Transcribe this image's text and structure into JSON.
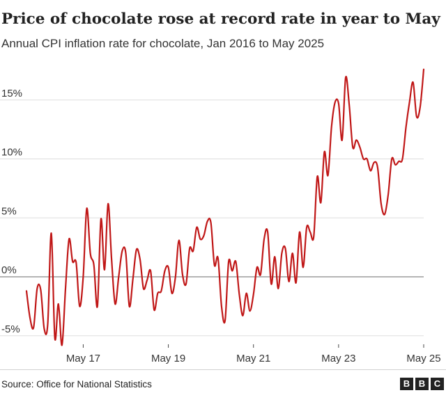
{
  "header": {
    "title": "Price of chocolate rose at record rate in year to May",
    "subtitle": "Annual CPI inflation rate for chocolate, Jan 2016 to May 2025"
  },
  "footer": {
    "source": "Source: Office for National Statistics",
    "logo_letters": [
      "B",
      "B",
      "C"
    ]
  },
  "colors": {
    "line": "#c01717",
    "grid": "#dddddd",
    "zero": "#888888",
    "text": "#222222"
  },
  "chart_data": {
    "type": "line",
    "title": "Price of chocolate rose at record rate in year to May",
    "subtitle": "Annual CPI inflation rate for chocolate, Jan 2016 to May 2025",
    "xlabel": "",
    "ylabel": "",
    "ylim": [
      -5.5,
      18
    ],
    "grid": true,
    "yticks": [
      {
        "value": -5,
        "label": "-5%"
      },
      {
        "value": 0,
        "label": "0%"
      },
      {
        "value": 5,
        "label": "5%"
      },
      {
        "value": 10,
        "label": "10%"
      },
      {
        "value": 15,
        "label": "15%"
      }
    ],
    "xticks": [
      {
        "index": 16,
        "label": "May 17"
      },
      {
        "index": 40,
        "label": "May 19"
      },
      {
        "index": 64,
        "label": "May 21"
      },
      {
        "index": 88,
        "label": "May 23"
      },
      {
        "index": 112,
        "label": "May 25"
      }
    ],
    "x_start": "Jan 2016",
    "x_end": "May 2025",
    "series": [
      {
        "name": "Chocolate CPI annual rate",
        "values": [
          -1.2,
          -3.5,
          -4.3,
          -1.0,
          -1.1,
          -4.4,
          -4.0,
          3.7,
          -5.2,
          -2.3,
          -5.8,
          -1.0,
          3.2,
          1.3,
          1.2,
          -2.5,
          0.0,
          5.8,
          2.0,
          1.0,
          -2.5,
          4.9,
          0.6,
          6.2,
          1.5,
          -2.3,
          0.0,
          2.2,
          2.0,
          -2.5,
          -0.2,
          2.3,
          1.5,
          -1.0,
          -0.3,
          0.5,
          -2.8,
          -1.4,
          -1.2,
          0.5,
          0.8,
          -1.4,
          0.0,
          3.1,
          0.2,
          -0.6,
          2.4,
          2.2,
          4.2,
          3.2,
          3.5,
          4.7,
          4.6,
          1.0,
          1.6,
          -2.5,
          -3.7,
          1.3,
          0.5,
          1.3,
          -1.5,
          -3.3,
          -1.4,
          -2.9,
          -1.5,
          0.8,
          0.2,
          3.2,
          3.8,
          -0.6,
          1.7,
          -1.0,
          2.0,
          2.4,
          -0.4,
          2.0,
          -0.5,
          3.8,
          0.8,
          4.2,
          3.8,
          3.4,
          8.5,
          6.3,
          10.6,
          8.6,
          12.7,
          14.8,
          14.7,
          11.6,
          16.9,
          14.6,
          11.0,
          11.6,
          11.0,
          10.0,
          10.0,
          9.0,
          9.7,
          9.3,
          6.2,
          5.3,
          7.0,
          10.0,
          9.5,
          9.8,
          10.0,
          12.7,
          14.8,
          16.5,
          13.6,
          14.4,
          17.6
        ]
      }
    ]
  }
}
